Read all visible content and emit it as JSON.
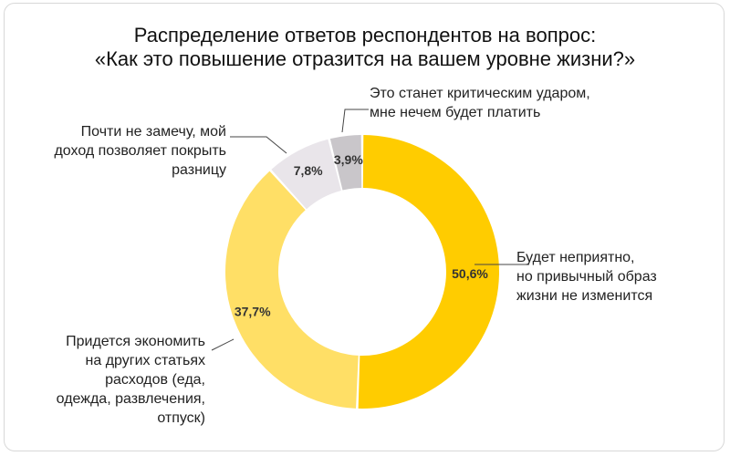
{
  "title_lines": [
    "Распределение ответов респондентов на вопрос:",
    "«Как это повышение отразится на вашем уровне жизни?»"
  ],
  "chart_data": {
    "type": "pie",
    "title": "Распределение ответов респондентов на вопрос: «Как это повышение отразится на вашем уровне жизни?»",
    "slices": [
      {
        "label_lines": [
          "Будет неприятно,",
          "но привычный образ",
          "жизни не изменится"
        ],
        "value": 50.6,
        "value_label": "50,6%",
        "color": "#FFCC00"
      },
      {
        "label_lines": [
          "Придется экономить",
          "на других статьях",
          "расходов (еда,",
          "одежда, развлечения,",
          "отпуск)"
        ],
        "value": 37.7,
        "value_label": "37,7%",
        "color": "#FFDF66"
      },
      {
        "label_lines": [
          "Почти не замечу, мой",
          "доход позволяет покрыть",
          "разницу"
        ],
        "value": 7.8,
        "value_label": "7,8%",
        "color": "#E9E5EA"
      },
      {
        "label_lines": [
          "Это станет критическим ударом,",
          "мне нечем будет платить"
        ],
        "value": 3.9,
        "value_label": "3,9%",
        "color": "#C9C6CA"
      }
    ],
    "legend": "callouts"
  }
}
